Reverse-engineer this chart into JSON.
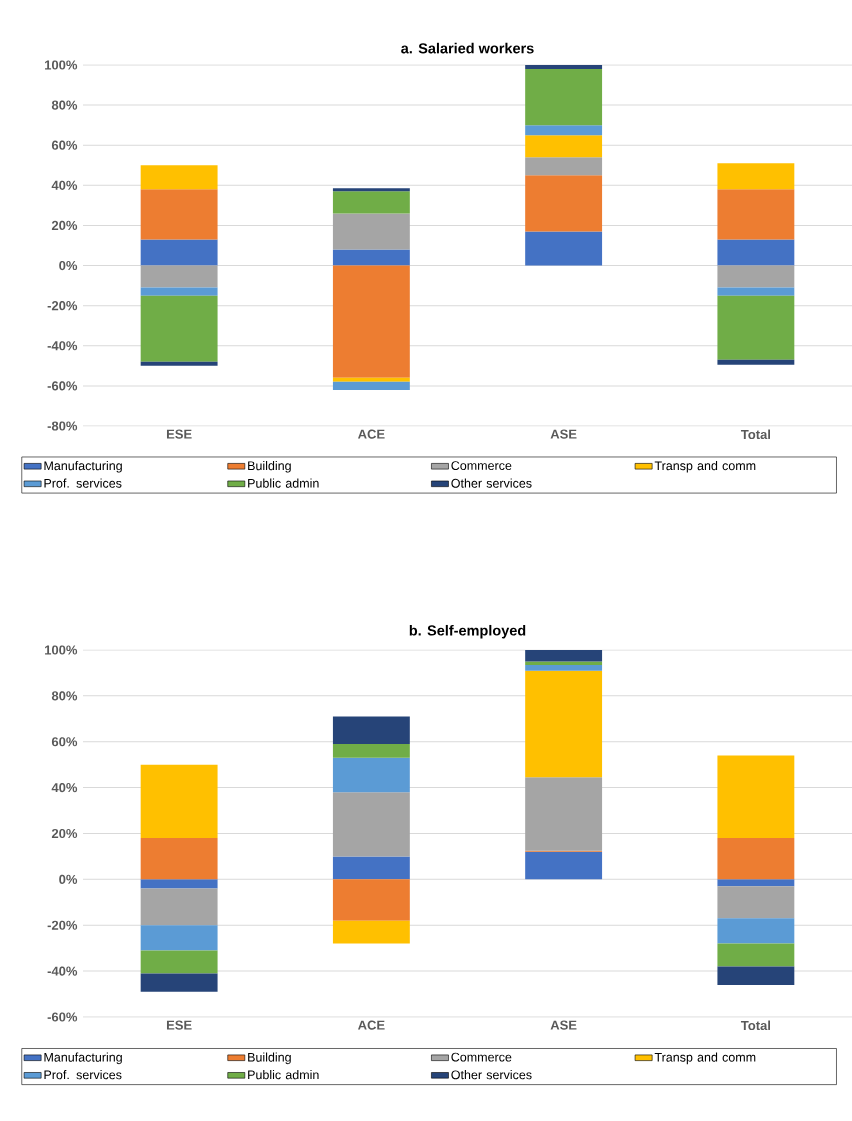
{
  "chart_data": [
    {
      "type": "bar",
      "title": "a.    Salaried workers",
      "stacked": true,
      "grid": "y",
      "legend": "bottom",
      "categories": [
        "ESE",
        "ACE",
        "ASE",
        "Total"
      ],
      "ylim": [
        -80,
        100
      ],
      "yticks": [
        {
          "value": -80,
          "label": "-80%"
        },
        {
          "value": -60,
          "label": "-60%"
        },
        {
          "value": -40,
          "label": "-40%"
        },
        {
          "value": -20,
          "label": "-20%"
        },
        {
          "value": 0,
          "label": "0%"
        },
        {
          "value": 20,
          "label": "20%"
        },
        {
          "value": 40,
          "label": "40%"
        },
        {
          "value": 60,
          "label": "60%"
        },
        {
          "value": 80,
          "label": "80%"
        },
        {
          "value": 100,
          "label": "100%"
        }
      ],
      "series": [
        {
          "name": "Manufacturing",
          "color": "#4472c4",
          "values": [
            13,
            8,
            17,
            13
          ]
        },
        {
          "name": "Building",
          "color": "#ed7d31",
          "values": [
            25,
            -56,
            28,
            25
          ]
        },
        {
          "name": "Commerce",
          "color": "#a5a5a5",
          "values": [
            -11,
            18,
            9,
            -11
          ]
        },
        {
          "name": "Transp and comm",
          "color": "#ffc000",
          "values": [
            12,
            -2,
            11,
            13
          ]
        },
        {
          "name": "Prof. services",
          "color": "#5b9bd5",
          "values": [
            -4,
            -4,
            5,
            -4
          ]
        },
        {
          "name": "Public admin",
          "color": "#70ad47",
          "values": [
            -33,
            11,
            28,
            -32
          ]
        },
        {
          "name": "Other services",
          "color": "#264478",
          "values": [
            -2,
            1.5,
            2,
            -2.5
          ]
        }
      ]
    },
    {
      "type": "bar",
      "title": "b.    Self-employed",
      "stacked": true,
      "grid": "y",
      "legend": "bottom",
      "categories": [
        "ESE",
        "ACE",
        "ASE",
        "Total"
      ],
      "ylim": [
        -60,
        100
      ],
      "yticks": [
        {
          "value": -60,
          "label": "-60%"
        },
        {
          "value": -40,
          "label": "-40%"
        },
        {
          "value": -20,
          "label": "-20%"
        },
        {
          "value": 0,
          "label": "0%"
        },
        {
          "value": 20,
          "label": "20%"
        },
        {
          "value": 40,
          "label": "40%"
        },
        {
          "value": 60,
          "label": "60%"
        },
        {
          "value": 80,
          "label": "80%"
        },
        {
          "value": 100,
          "label": "100%"
        }
      ],
      "series": [
        {
          "name": "Manufacturing",
          "color": "#4472c4",
          "values": [
            -4,
            10,
            12,
            -3
          ]
        },
        {
          "name": "Building",
          "color": "#ed7d31",
          "values": [
            18,
            -18,
            0.5,
            18
          ]
        },
        {
          "name": "Commerce",
          "color": "#a5a5a5",
          "values": [
            -16,
            28,
            32,
            -14
          ]
        },
        {
          "name": "Transp and comm",
          "color": "#ffc000",
          "values": [
            32,
            -10,
            46.5,
            36
          ]
        },
        {
          "name": "Prof. services",
          "color": "#5b9bd5",
          "values": [
            -11,
            15,
            2.5,
            -11
          ]
        },
        {
          "name": "Public admin",
          "color": "#70ad47",
          "values": [
            -10,
            6,
            1.5,
            -10
          ]
        },
        {
          "name": "Other services",
          "color": "#264478",
          "values": [
            -8,
            12,
            5,
            -8
          ]
        }
      ]
    }
  ]
}
